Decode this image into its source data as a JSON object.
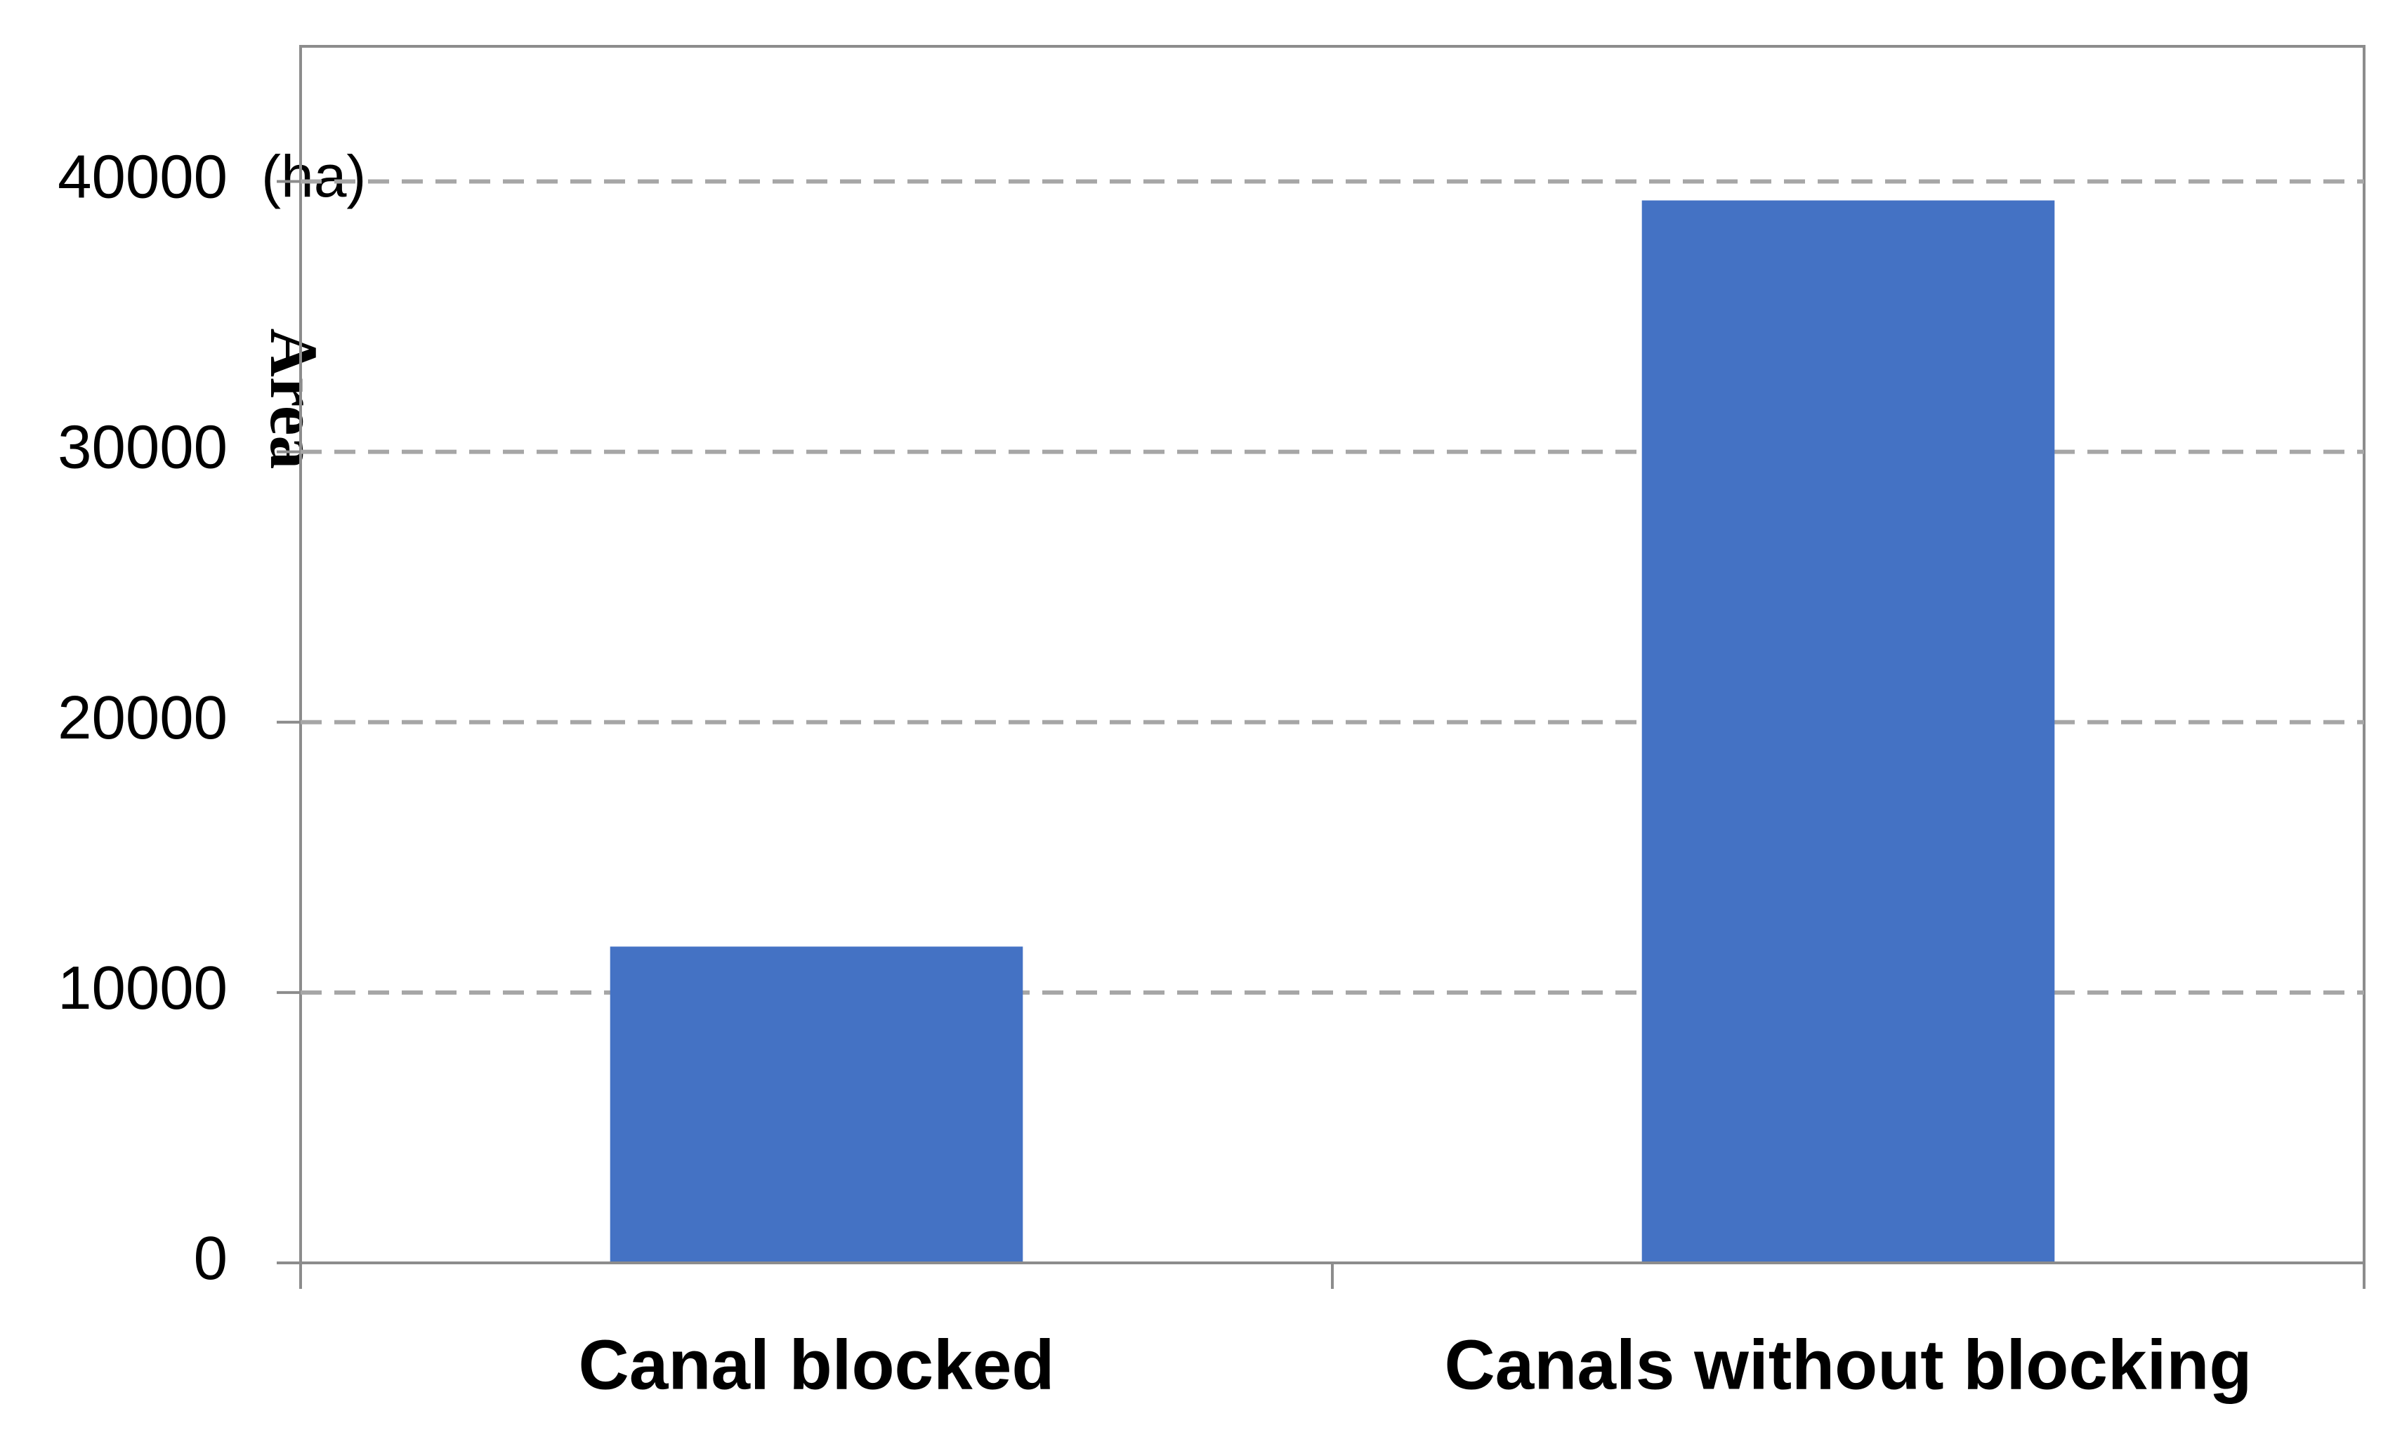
{
  "chart_data": {
    "type": "bar",
    "y_label": "Area",
    "y_unit": "(ha)",
    "categories": [
      "Canal blocked",
      "Canals without blocking"
    ],
    "values": [
      11700,
      39300
    ],
    "color": "#4472c4",
    "ylim": [
      0,
      45000
    ],
    "yticks": [
      0,
      10000,
      20000,
      30000,
      40000
    ],
    "grid": true
  }
}
